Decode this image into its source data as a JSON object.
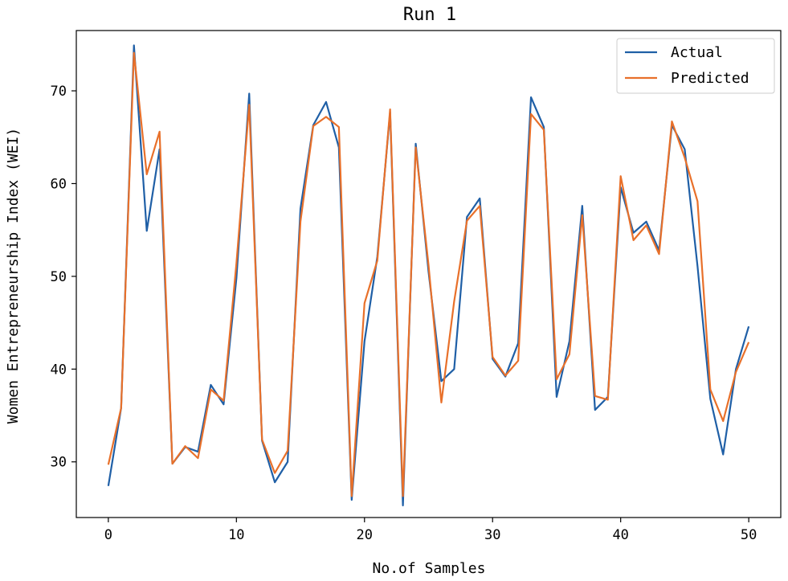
{
  "chart_data": {
    "type": "line",
    "title": "Run 1",
    "xlabel": "No.of Samples",
    "ylabel": "Women Entrepreneurship Index (WEI)",
    "xlim": [
      -2.5,
      52.5
    ],
    "ylim": [
      24.0,
      76.5
    ],
    "xticks": [
      0,
      10,
      20,
      30,
      40,
      50
    ],
    "yticks": [
      30,
      40,
      50,
      60,
      70
    ],
    "legend_position": "top-right",
    "x": [
      0,
      1,
      2,
      3,
      4,
      5,
      6,
      7,
      8,
      9,
      10,
      11,
      12,
      13,
      14,
      15,
      16,
      17,
      18,
      19,
      20,
      21,
      22,
      23,
      24,
      25,
      26,
      27,
      28,
      29,
      30,
      31,
      32,
      33,
      34,
      35,
      36,
      37,
      38,
      39,
      40,
      41,
      42,
      43,
      44,
      45,
      46,
      47,
      48,
      49,
      50
    ],
    "series": [
      {
        "name": "Actual",
        "color": "#1f5fa6",
        "values": [
          27.4,
          35.8,
          74.9,
          54.9,
          63.7,
          29.8,
          31.6,
          31.1,
          38.3,
          36.2,
          49.8,
          69.7,
          32.3,
          27.8,
          30.0,
          57.3,
          66.3,
          68.8,
          63.9,
          25.9,
          43.0,
          52.1,
          67.7,
          25.3,
          64.3,
          50.5,
          38.7,
          40.0,
          56.4,
          58.4,
          41.1,
          39.2,
          42.8,
          69.3,
          66.1,
          37.0,
          43.0,
          57.6,
          35.6,
          37.0,
          59.6,
          54.7,
          55.9,
          52.8,
          66.3,
          63.7,
          51.1,
          36.8,
          30.8,
          40.0,
          44.6
        ]
      },
      {
        "name": "Predicted",
        "color": "#e8702a",
        "values": [
          29.7,
          35.8,
          74.1,
          61.0,
          65.6,
          29.8,
          31.7,
          30.4,
          37.8,
          36.6,
          51.4,
          68.5,
          32.4,
          28.8,
          31.2,
          55.9,
          66.2,
          67.2,
          66.1,
          26.3,
          47.1,
          51.7,
          68.0,
          26.3,
          63.9,
          51.2,
          36.4,
          47.3,
          56.0,
          57.6,
          41.3,
          39.3,
          40.9,
          67.5,
          65.8,
          38.9,
          41.6,
          56.6,
          37.1,
          36.7,
          60.8,
          53.9,
          55.5,
          52.4,
          66.7,
          62.8,
          58.1,
          37.8,
          34.4,
          39.7,
          42.9
        ]
      }
    ]
  }
}
